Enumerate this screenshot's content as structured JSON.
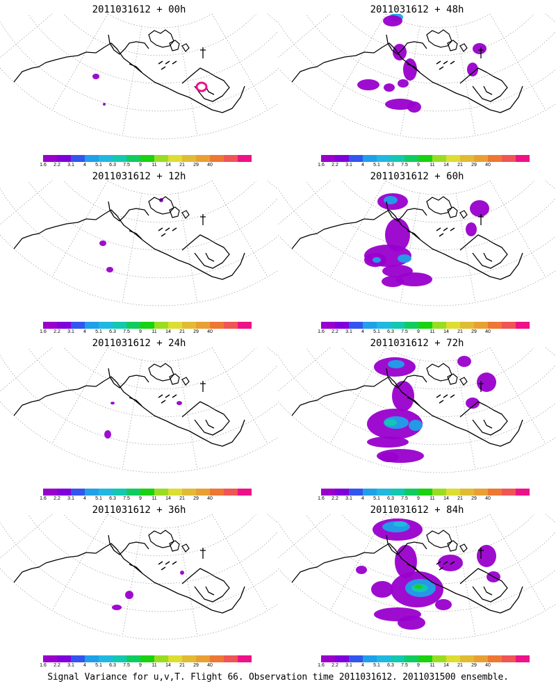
{
  "panels": [
    {
      "title": "2011031612 + 00h",
      "lead_hours": 0
    },
    {
      "title": "2011031612 + 48h",
      "lead_hours": 48
    },
    {
      "title": "2011031612 + 12h",
      "lead_hours": 12
    },
    {
      "title": "2011031612 + 60h",
      "lead_hours": 60
    },
    {
      "title": "2011031612 + 24h",
      "lead_hours": 24
    },
    {
      "title": "2011031612 + 72h",
      "lead_hours": 72
    },
    {
      "title": "2011031612 + 36h",
      "lead_hours": 36
    },
    {
      "title": "2011031612 + 84h",
      "lead_hours": 84
    }
  ],
  "colorbar": {
    "labels": [
      "1.6",
      "2.2",
      "3.1",
      "4",
      "5.1",
      "6.3",
      "7.5",
      "9",
      "11",
      "14",
      "21",
      "29",
      "40"
    ],
    "colors": [
      "#9900cc",
      "#7f00dd",
      "#3355ee",
      "#1fa0e8",
      "#21b8e0",
      "#13c8b0",
      "#10cc60",
      "#1ad210",
      "#99dd22",
      "#dddd33",
      "#e0bb33",
      "#e8a033",
      "#ee7733",
      "#f05555",
      "#ee1188"
    ]
  },
  "caption": "Signal Variance for u,v,T. Flight 66. Observation time 2011031612. 2011031500 ensemble."
}
